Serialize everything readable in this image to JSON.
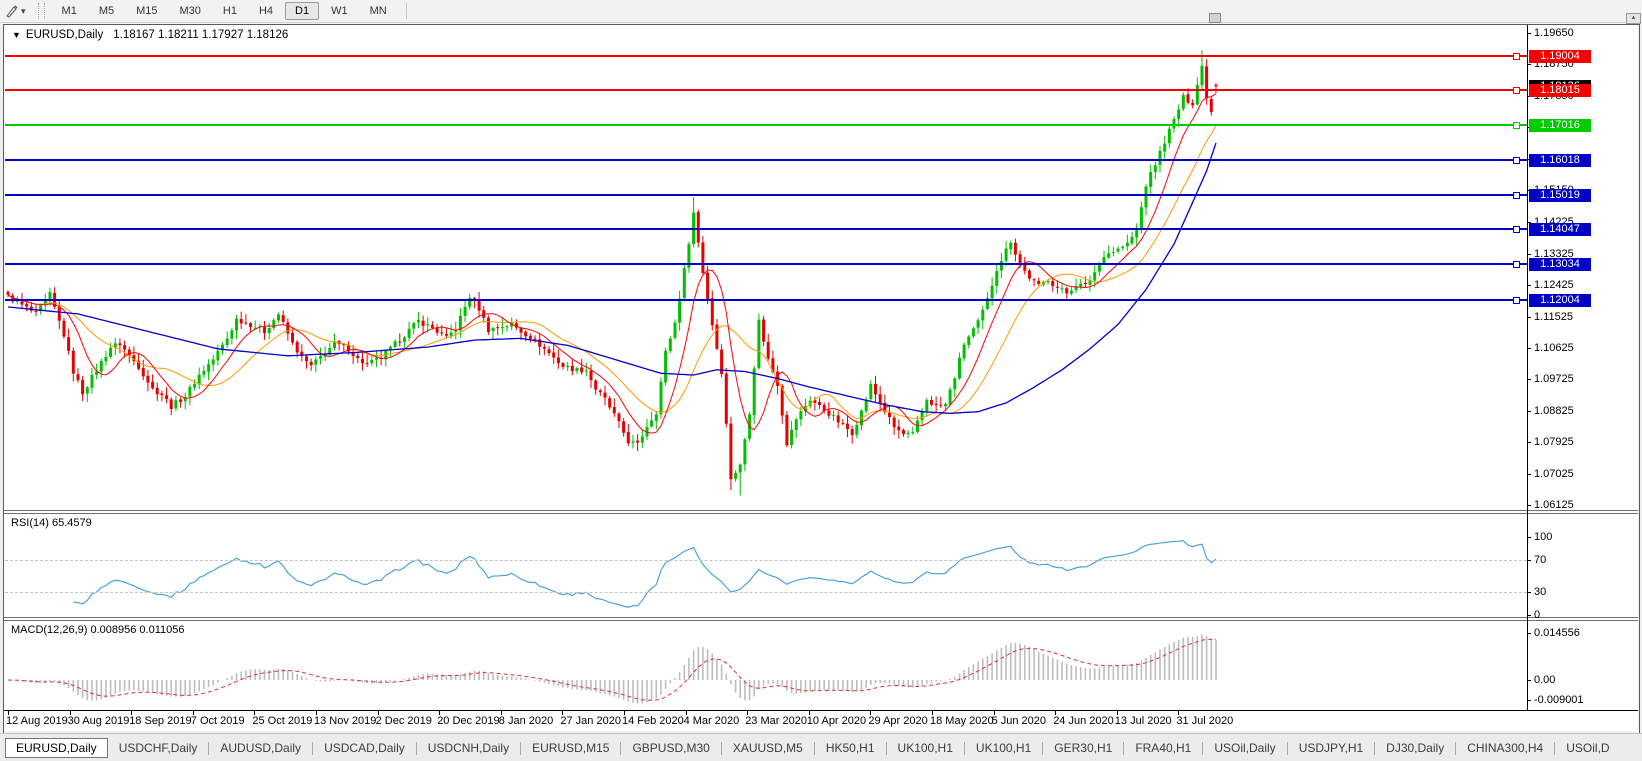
{
  "toolbar": {
    "timeframes": [
      "M1",
      "M5",
      "M15",
      "M30",
      "H1",
      "H4",
      "D1",
      "W1",
      "MN"
    ],
    "active_timeframe": "D1",
    "tool_icon": "chart-cursor-tool"
  },
  "chart_header": {
    "menu_icon": "▼",
    "symbol": "EURUSD,Daily",
    "ohlc": "1.18167 1.18211 1.17927 1.18126"
  },
  "price_axis": {
    "scale_labels": [
      "1.19650",
      "1.18750",
      "1.17850",
      "1.16950",
      "1.16050",
      "1.15150",
      "1.14225",
      "1.13325",
      "1.12425",
      "1.11525",
      "1.10625",
      "1.09725",
      "1.08825",
      "1.07925",
      "1.07025",
      "1.06125"
    ]
  },
  "current_price": {
    "label": "1.18126",
    "price": 1.18126,
    "color": "#000000"
  },
  "levels": [
    {
      "label": "1.19004",
      "price": 1.19004,
      "color": "#F40000"
    },
    {
      "label": "1.18015",
      "price": 1.18015,
      "color": "#F40000"
    },
    {
      "label": "1.17016",
      "price": 1.17016,
      "color": "#00CC00"
    },
    {
      "label": "1.16018",
      "price": 1.16018,
      "color": "#0000C8"
    },
    {
      "label": "1.15019",
      "price": 1.15019,
      "color": "#0000C8"
    },
    {
      "label": "1.14047",
      "price": 1.14047,
      "color": "#0000C8"
    },
    {
      "label": "1.13034",
      "price": 1.13034,
      "color": "#0000C8"
    },
    {
      "label": "1.12004",
      "price": 1.12004,
      "color": "#0000C8"
    }
  ],
  "rsi": {
    "label": "RSI(14) 65.4579",
    "value": "65.4579",
    "axis_labels": [
      "100",
      "70",
      "30",
      "0"
    ],
    "dashed_levels": [
      70,
      30
    ],
    "line_color": "#3E9BDE"
  },
  "macd": {
    "label": "MACD(12,26,9) 0.008956 0.011056",
    "macd_value": "0.008956",
    "signal_value": "0.011056",
    "axis_labels": [
      {
        "text": "0.014556",
        "value": 0.014556
      },
      {
        "text": "0.00",
        "value": 0
      },
      {
        "text": "-0.009001",
        "value": -0.009001
      }
    ],
    "histogram_color": "#BDBDBD",
    "signal_color": "#E03030"
  },
  "date_axis": {
    "labels": [
      "12 Aug 2019",
      "30 Aug 2019",
      "18 Sep 2019",
      "7 Oct 2019",
      "25 Oct 2019",
      "13 Nov 2019",
      "2 Dec 2019",
      "20 Dec 2019",
      "8 Jan 2020",
      "27 Jan 2020",
      "14 Feb 2020",
      "4 Mar 2020",
      "23 Mar 2020",
      "10 Apr 2020",
      "29 Apr 2020",
      "18 May 2020",
      "5 Jun 2020",
      "24 Jun 2020",
      "13 Jul 2020",
      "31 Jul 2020"
    ]
  },
  "tabs": [
    {
      "label": "EURUSD,Daily",
      "active": true
    },
    {
      "label": "USDCHF,Daily",
      "active": false
    },
    {
      "label": "AUDUSD,Daily",
      "active": false
    },
    {
      "label": "USDCAD,Daily",
      "active": false
    },
    {
      "label": "USDCNH,Daily",
      "active": false
    },
    {
      "label": "EURUSD,M15",
      "active": false
    },
    {
      "label": "GBPUSD,M30",
      "active": false
    },
    {
      "label": "XAUUSD,M5",
      "active": false
    },
    {
      "label": "HK50,H1",
      "active": false
    },
    {
      "label": "UK100,H1",
      "active": false
    },
    {
      "label": "UK100,H1",
      "active": false
    },
    {
      "label": "GER30,H1",
      "active": false
    },
    {
      "label": "FRA40,H1",
      "active": false
    },
    {
      "label": "USOil,Daily",
      "active": false
    },
    {
      "label": "USDJPY,H1",
      "active": false
    },
    {
      "label": "DJ30,Daily",
      "active": false
    },
    {
      "label": "CHINA300,H4",
      "active": false
    },
    {
      "label": "USOil,D",
      "active": false
    }
  ],
  "chart_data": {
    "type": "candlestick",
    "symbol": "EURUSD",
    "timeframe": "Daily",
    "ohlc_current": {
      "open": 1.18167,
      "high": 1.18211,
      "low": 1.17927,
      "close": 1.18126
    },
    "visible_price_range": [
      1.06125,
      1.1965
    ],
    "horizontal_levels": [
      1.19004,
      1.18015,
      1.17016,
      1.16018,
      1.15019,
      1.14047,
      1.13034,
      1.12004
    ],
    "up_color": "#00C000",
    "down_color": "#E60000",
    "ma_fast_color": "#FF0000",
    "ma_mid_color": "#FF9900",
    "ma_slow_color": "#0000CC",
    "close_anchors": [
      [
        0,
        1.121
      ],
      [
        3,
        1.1185
      ],
      [
        6,
        1.116
      ],
      [
        9,
        1.1215
      ],
      [
        12,
        1.11
      ],
      [
        14,
        1.0995
      ],
      [
        16,
        1.0935
      ],
      [
        19,
        1.1
      ],
      [
        22,
        1.1065
      ],
      [
        24,
        1.1075
      ],
      [
        26,
        1.104
      ],
      [
        28,
        1.101
      ],
      [
        31,
        1.0945
      ],
      [
        33,
        1.093
      ],
      [
        35,
        1.0895
      ],
      [
        38,
        1.0925
      ],
      [
        41,
        1.0985
      ],
      [
        44,
        1.103
      ],
      [
        47,
        1.109
      ],
      [
        49,
        1.1145
      ],
      [
        52,
        1.113
      ],
      [
        55,
        1.111
      ],
      [
        58,
        1.116
      ],
      [
        61,
        1.1075
      ],
      [
        63,
        1.1035
      ],
      [
        65,
        1.101
      ],
      [
        68,
        1.105
      ],
      [
        70,
        1.1075
      ],
      [
        73,
        1.106
      ],
      [
        75,
        1.103
      ],
      [
        77,
        1.1015
      ],
      [
        80,
        1.1035
      ],
      [
        82,
        1.106
      ],
      [
        85,
        1.11
      ],
      [
        88,
        1.114
      ],
      [
        91,
        1.112
      ],
      [
        94,
        1.109
      ],
      [
        96,
        1.112
      ],
      [
        99,
        1.121
      ],
      [
        101,
        1.1175
      ],
      [
        103,
        1.1115
      ],
      [
        106,
        1.1125
      ],
      [
        108,
        1.113
      ],
      [
        110,
        1.111
      ],
      [
        112,
        1.1095
      ],
      [
        115,
        1.106
      ],
      [
        117,
        1.1035
      ],
      [
        119,
        1.101
      ],
      [
        122,
        1.1
      ],
      [
        124,
        1.1
      ],
      [
        126,
        1.0945
      ],
      [
        128,
        1.0915
      ],
      [
        130,
        1.087
      ],
      [
        133,
        1.0795
      ],
      [
        135,
        1.0785
      ],
      [
        137,
        1.084
      ],
      [
        139,
        1.088
      ],
      [
        141,
        1.105
      ],
      [
        143,
        1.1135
      ],
      [
        145,
        1.1285
      ],
      [
        147,
        1.145
      ],
      [
        149,
        1.128
      ],
      [
        151,
        1.113
      ],
      [
        153,
        1.0995
      ],
      [
        155,
        1.069
      ],
      [
        157,
        1.0725
      ],
      [
        159,
        1.088
      ],
      [
        161,
        1.114
      ],
      [
        163,
        1.103
      ],
      [
        165,
        1.096
      ],
      [
        167,
        1.079
      ],
      [
        169,
        1.086
      ],
      [
        172,
        1.0915
      ],
      [
        174,
        1.0895
      ],
      [
        176,
        1.0875
      ],
      [
        179,
        1.084
      ],
      [
        181,
        1.082
      ],
      [
        183,
        1.088
      ],
      [
        185,
        1.0955
      ],
      [
        187,
        1.0905
      ],
      [
        190,
        1.0835
      ],
      [
        192,
        1.0815
      ],
      [
        194,
        1.0815
      ],
      [
        197,
        1.0915
      ],
      [
        199,
        1.0895
      ],
      [
        201,
        1.09
      ],
      [
        203,
        1.098
      ],
      [
        205,
        1.1075
      ],
      [
        208,
        1.1135
      ],
      [
        210,
        1.12
      ],
      [
        212,
        1.129
      ],
      [
        215,
        1.137
      ],
      [
        217,
        1.13
      ],
      [
        219,
        1.1265
      ],
      [
        221,
        1.124
      ],
      [
        223,
        1.126
      ],
      [
        225,
        1.1235
      ],
      [
        227,
        1.122
      ],
      [
        229,
        1.1245
      ],
      [
        231,
        1.124
      ],
      [
        233,
        1.128
      ],
      [
        235,
        1.133
      ],
      [
        238,
        1.1345
      ],
      [
        240,
        1.136
      ],
      [
        242,
        1.14
      ],
      [
        244,
        1.153
      ],
      [
        246,
        1.159
      ],
      [
        248,
        1.1655
      ],
      [
        250,
        1.1715
      ],
      [
        252,
        1.178
      ],
      [
        254,
        1.1765
      ],
      [
        256,
        1.187
      ],
      [
        257,
        1.1785
      ],
      [
        258,
        1.174
      ],
      [
        259,
        1.1813
      ]
    ],
    "wick_overrides": [
      [
        147,
        1.1495,
        null
      ],
      [
        155,
        null,
        1.0655
      ],
      [
        157,
        null,
        1.064
      ],
      [
        256,
        1.1916,
        null
      ]
    ],
    "blue_ma_anchors": [
      [
        0,
        1.118
      ],
      [
        15,
        1.116
      ],
      [
        30,
        1.111
      ],
      [
        45,
        1.106
      ],
      [
        60,
        1.104
      ],
      [
        75,
        1.105
      ],
      [
        90,
        1.1065
      ],
      [
        100,
        1.1085
      ],
      [
        110,
        1.109
      ],
      [
        120,
        1.107
      ],
      [
        130,
        1.103
      ],
      [
        140,
        1.099
      ],
      [
        147,
        1.0985
      ],
      [
        152,
        1.1
      ],
      [
        158,
        1.0995
      ],
      [
        165,
        1.0975
      ],
      [
        172,
        1.095
      ],
      [
        180,
        1.0925
      ],
      [
        188,
        1.09
      ],
      [
        196,
        1.088
      ],
      [
        202,
        1.0875
      ],
      [
        208,
        1.088
      ],
      [
        214,
        1.0905
      ],
      [
        220,
        1.095
      ],
      [
        226,
        1.1
      ],
      [
        232,
        1.106
      ],
      [
        238,
        1.113
      ],
      [
        244,
        1.123
      ],
      [
        250,
        1.136
      ],
      [
        254,
        1.148
      ],
      [
        257,
        1.157
      ],
      [
        259,
        1.165
      ]
    ],
    "indicators": [
      "RSI(14)=65.4579",
      "MACD(12,26,9)=0.008956 signal 0.011056"
    ]
  }
}
